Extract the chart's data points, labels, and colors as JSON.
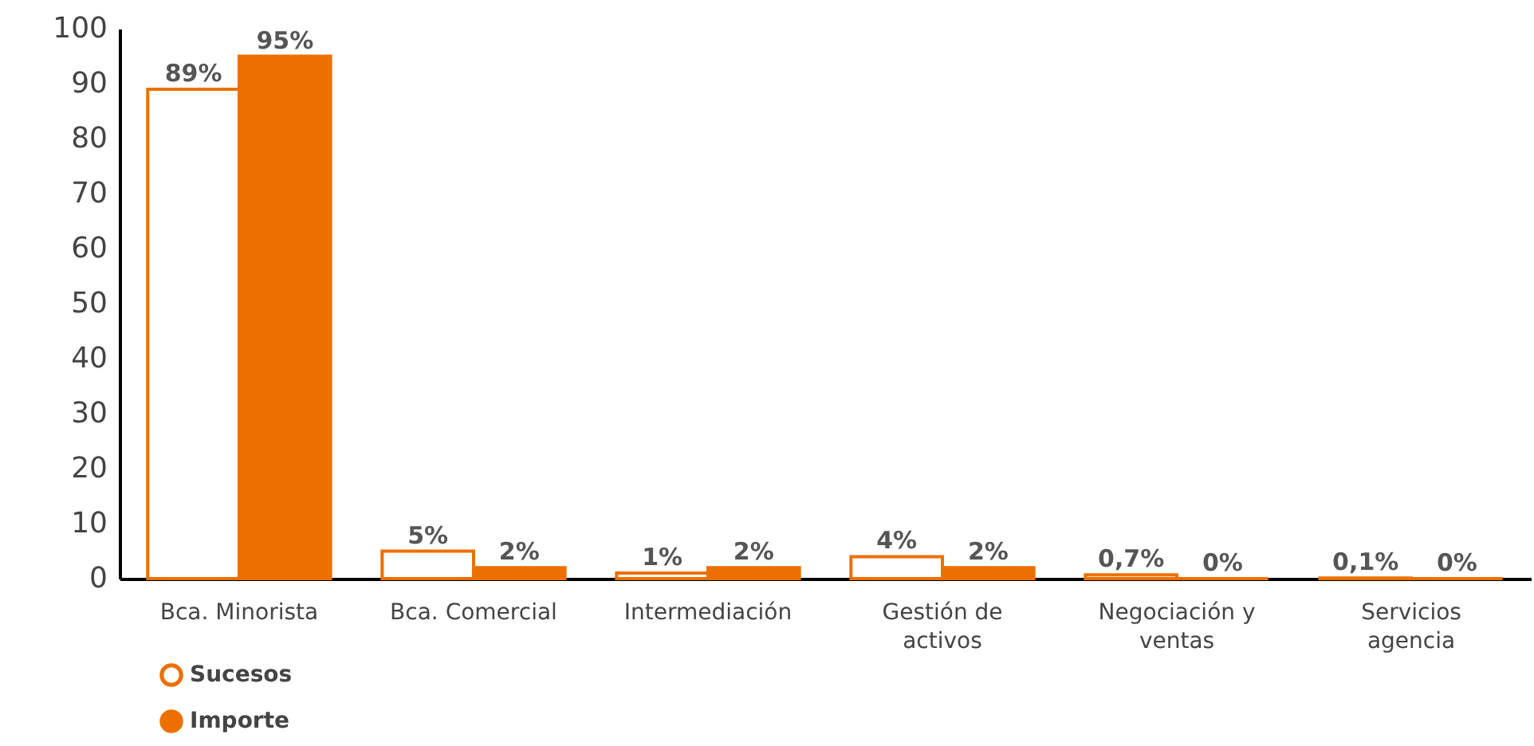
{
  "chart_data": {
    "type": "bar",
    "categories": [
      "Bca. Minorista",
      "Bca. Comercial",
      "Intermediación",
      "Gestión de activos",
      "Negociación y ventas",
      "Servicios agencia"
    ],
    "series": [
      {
        "name": "Sucesos",
        "color": "#ffffff",
        "values": [
          89,
          5,
          1,
          4,
          0.7,
          0.1
        ],
        "value_labels": [
          "89%",
          "5%",
          "1%",
          "4%",
          "0,7%",
          "0,1%"
        ]
      },
      {
        "name": "Importe",
        "color": "#ec7000",
        "values": [
          95,
          2,
          2,
          2,
          0,
          0
        ],
        "value_labels": [
          "95%",
          "2%",
          "2%",
          "2%",
          "0%",
          "0%"
        ]
      }
    ],
    "ylim": [
      0,
      100
    ],
    "yticks": [
      0,
      10,
      20,
      30,
      40,
      50,
      60,
      70,
      80,
      90,
      100
    ],
    "grid": false,
    "legend": "bottom left"
  }
}
